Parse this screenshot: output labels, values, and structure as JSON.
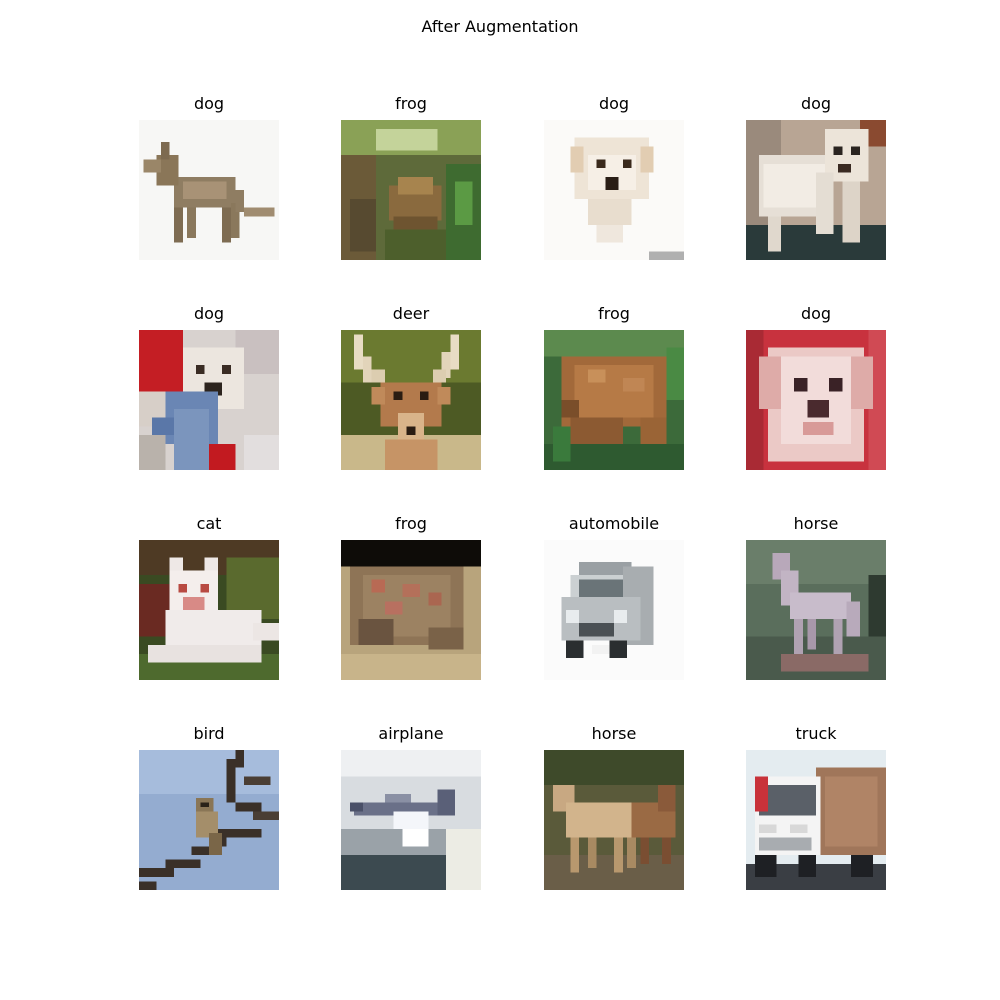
{
  "figure": {
    "title": "After Augmentation",
    "background": "#ffffff"
  },
  "panels": [
    {
      "label": "dog",
      "depicts": "tan-dog-standing-side-view"
    },
    {
      "label": "frog",
      "depicts": "frog-in-green-foliage"
    },
    {
      "label": "dog",
      "depicts": "white-puppy-face"
    },
    {
      "label": "dog",
      "depicts": "white-poodle-standing"
    },
    {
      "label": "dog",
      "depicts": "white-dog-with-blue-toy"
    },
    {
      "label": "deer",
      "depicts": "deer-head-with-antlers"
    },
    {
      "label": "frog",
      "depicts": "brown-toad-on-grass"
    },
    {
      "label": "dog",
      "depicts": "puppy-on-red-background"
    },
    {
      "label": "cat",
      "depicts": "white-cat-lying-on-grass"
    },
    {
      "label": "frog",
      "depicts": "toad-close-up"
    },
    {
      "label": "automobile",
      "depicts": "silver-car-front"
    },
    {
      "label": "horse",
      "depicts": "grey-horse-statue"
    },
    {
      "label": "bird",
      "depicts": "bird-on-branch"
    },
    {
      "label": "airplane",
      "depicts": "airplane-in-sky"
    },
    {
      "label": "horse",
      "depicts": "horses-in-field"
    },
    {
      "label": "truck",
      "depicts": "white-truck-front"
    }
  ]
}
